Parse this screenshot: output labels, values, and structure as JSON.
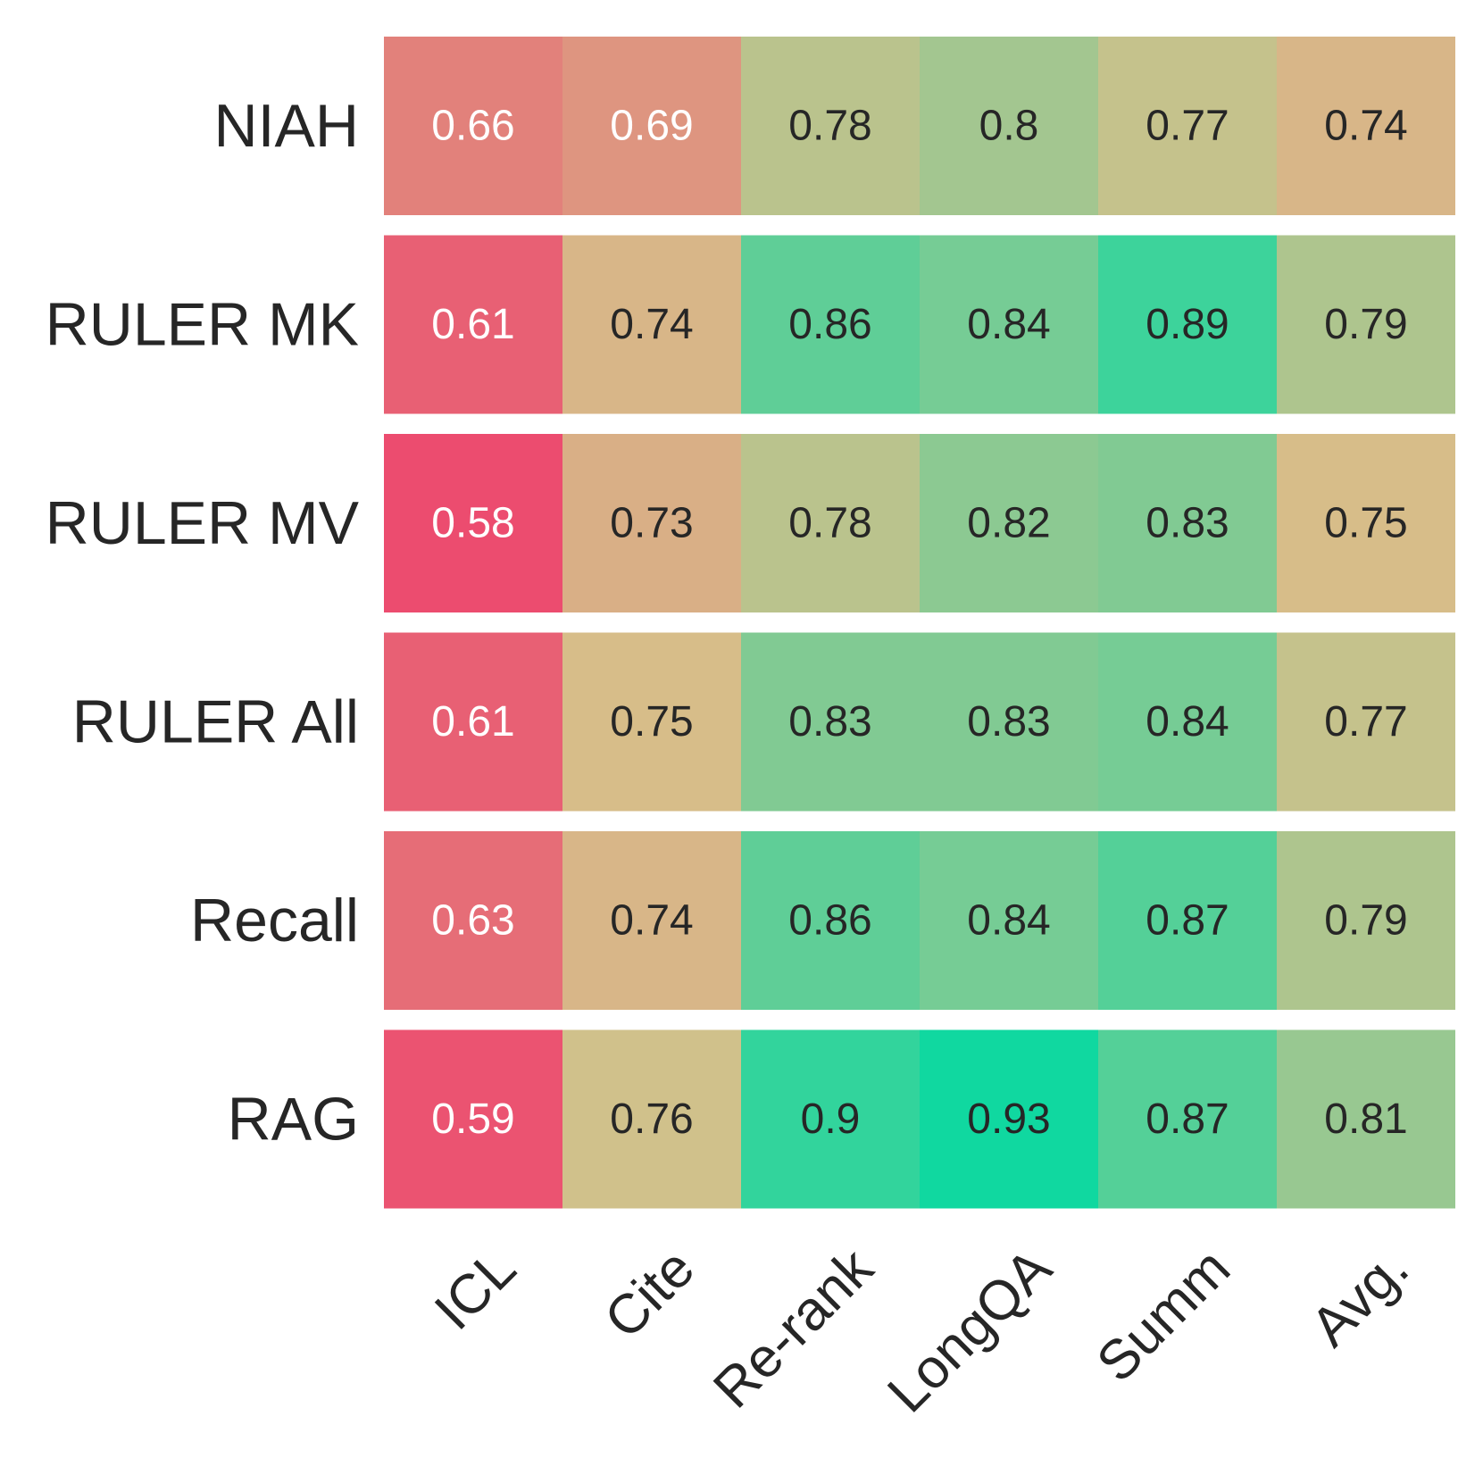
{
  "chart_data": {
    "type": "heatmap",
    "rows": [
      "NIAH",
      "RULER MK",
      "RULER MV",
      "RULER All",
      "Recall",
      "RAG"
    ],
    "columns": [
      "ICL",
      "Cite",
      "Re-rank",
      "LongQA",
      "Summ",
      "Avg."
    ],
    "values": [
      [
        "0.66",
        "0.69",
        "0.78",
        "0.8",
        "0.77",
        "0.74"
      ],
      [
        "0.61",
        "0.74",
        "0.86",
        "0.84",
        "0.89",
        "0.79"
      ],
      [
        "0.58",
        "0.73",
        "0.78",
        "0.82",
        "0.83",
        "0.75"
      ],
      [
        "0.61",
        "0.75",
        "0.83",
        "0.83",
        "0.84",
        "0.77"
      ],
      [
        "0.63",
        "0.74",
        "0.86",
        "0.84",
        "0.87",
        "0.79"
      ],
      [
        "0.59",
        "0.76",
        "0.9",
        "0.93",
        "0.87",
        "0.81"
      ]
    ],
    "colormap": {
      "min_value": 0.58,
      "max_value": 0.93,
      "low_color": "#ec4c6f",
      "mid_color": "#d6c08a",
      "high_color": "#10d8a0"
    },
    "text_colors": {
      "light": "#ffffff",
      "dark": "#262626"
    },
    "light_text_threshold": 0.7
  }
}
